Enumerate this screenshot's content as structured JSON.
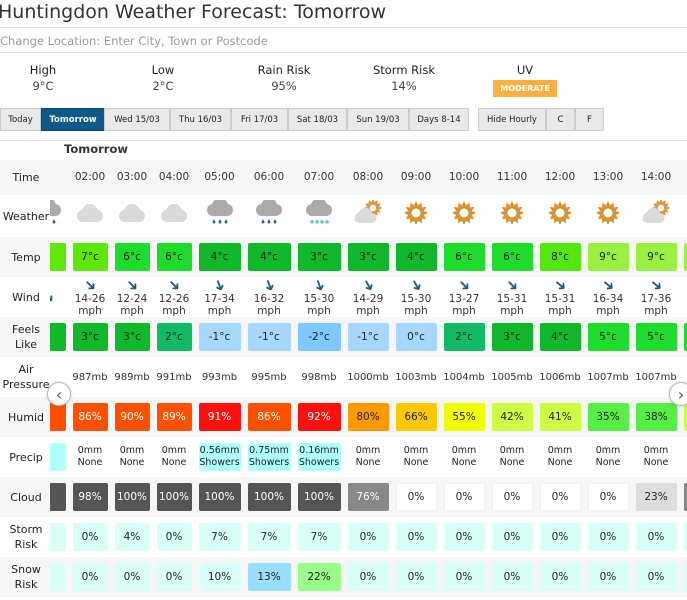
{
  "title": "Huntingdon Weather Forecast: Tomorrow",
  "location": {
    "placeholder": "Change Location: Enter City, Town or Postcode"
  },
  "summary": [
    {
      "label": "High",
      "value": "9°C"
    },
    {
      "label": "Low",
      "value": "2°C"
    },
    {
      "label": "Rain Risk",
      "value": "95%"
    },
    {
      "label": "Storm Risk",
      "value": "14%"
    },
    {
      "label": "UV",
      "value": "MODERATE",
      "color": "#f9b040"
    }
  ],
  "tabs": [
    {
      "label": "Today"
    },
    {
      "label": "Tomorrow",
      "active": true
    },
    {
      "label": "Wed 15/03"
    },
    {
      "label": "Thu 16/03"
    },
    {
      "label": "Fri 17/03"
    },
    {
      "label": "Sat 18/03"
    },
    {
      "label": "Sun 19/03"
    },
    {
      "label": "Days 8-14"
    },
    {
      "label": "Hide Hourly"
    },
    {
      "label": "C"
    },
    {
      "label": "F"
    }
  ],
  "day_heading": "Tomorrow",
  "row_labels": {
    "time": "Time",
    "weather": "Weather",
    "temp": "Temp",
    "wind": "Wind",
    "feels": "Feels Like",
    "pressure": "Air Pressure",
    "humid": "Humid",
    "precip": "Precip",
    "cloud": "Cloud",
    "storm": "Storm Risk",
    "snow": "Snow Risk"
  },
  "accent": "#0d5a8a",
  "hours": [
    {
      "time": "",
      "icon": "rain-cloud-icon",
      "temp": "",
      "temp_color": "#5de80a",
      "wind_speed": "",
      "wind_unit": "",
      "wind_dir": 135,
      "feels": "",
      "feels_color": "#10b82a",
      "pressure": "",
      "humid": "",
      "humid_color": "#ff5000",
      "precip_amt": "",
      "precip_type": "",
      "precip_color": "#b0ffff",
      "cloud": "",
      "cloud_color": "#555555",
      "storm": "",
      "snow": ""
    },
    {
      "time": "02:00",
      "icon": "cloud-icon",
      "temp": "7°c",
      "temp_color": "#5de80a",
      "wind_speed": "14-26",
      "wind_unit": "mph",
      "wind_dir": 135,
      "feels": "3°c",
      "feels_color": "#10b82a",
      "pressure": "987mb",
      "humid": "86%",
      "humid_color": "#ff5000",
      "precip_amt": "0mm",
      "precip_type": "None",
      "cloud": "98%",
      "cloud_color": "#555555",
      "storm": "0%",
      "snow": "0%"
    },
    {
      "time": "03:00",
      "icon": "cloud-icon",
      "temp": "6°c",
      "temp_color": "#1ddc2c",
      "wind_speed": "12-24",
      "wind_unit": "mph",
      "wind_dir": 135,
      "feels": "3°c",
      "feels_color": "#10b82a",
      "pressure": "989mb",
      "humid": "90%",
      "humid_color": "#ff5000",
      "precip_amt": "0mm",
      "precip_type": "None",
      "cloud": "100%",
      "cloud_color": "#555555",
      "storm": "4%",
      "snow": "0%"
    },
    {
      "time": "04:00",
      "icon": "cloud-icon",
      "temp": "6°c",
      "temp_color": "#1ddc2c",
      "wind_speed": "12-26",
      "wind_unit": "mph",
      "wind_dir": 135,
      "feels": "2°c",
      "feels_color": "#11bb66",
      "pressure": "991mb",
      "humid": "89%",
      "humid_color": "#ff5000",
      "precip_amt": "0mm",
      "precip_type": "None",
      "cloud": "100%",
      "cloud_color": "#555555",
      "storm": "0%",
      "snow": "0%"
    },
    {
      "time": "05:00",
      "icon": "rain-cloud-icon",
      "temp": "4°c",
      "temp_color": "#10b82a",
      "wind_speed": "17-34",
      "wind_unit": "mph",
      "wind_dir": 160,
      "feels": "-1°c",
      "feels_color": "#a6d8ff",
      "pressure": "993mb",
      "humid": "91%",
      "humid_color": "#ff1010",
      "precip_amt": "0.56mm",
      "precip_type": "Showers",
      "precip_color": "#b0ffff",
      "cloud": "100%",
      "cloud_color": "#555555",
      "storm": "7%",
      "snow": "10%"
    },
    {
      "time": "06:00",
      "icon": "rain-cloud-icon",
      "temp": "4°c",
      "temp_color": "#10b82a",
      "wind_speed": "16-32",
      "wind_unit": "mph",
      "wind_dir": 160,
      "feels": "-1°c",
      "feels_color": "#a6d8ff",
      "pressure": "995mb",
      "humid": "86%",
      "humid_color": "#ff5000",
      "precip_amt": "0.75mm",
      "precip_type": "Showers",
      "precip_color": "#b0ffff",
      "cloud": "100%",
      "cloud_color": "#555555",
      "storm": "7%",
      "snow": "13%",
      "snow_color": "#99ddff"
    },
    {
      "time": "07:00",
      "icon": "sleet-cloud-icon",
      "temp": "3°c",
      "temp_color": "#10b82a",
      "wind_speed": "15-30",
      "wind_unit": "mph",
      "wind_dir": 160,
      "feels": "-2°c",
      "feels_color": "#7fc8ff",
      "pressure": "998mb",
      "humid": "92%",
      "humid_color": "#ff1010",
      "precip_amt": "0.16mm",
      "precip_type": "Showers",
      "precip_color": "#b0ffff",
      "cloud": "100%",
      "cloud_color": "#555555",
      "storm": "7%",
      "snow": "22%",
      "snow_color": "#99ff88"
    },
    {
      "time": "08:00",
      "icon": "sun-cloud-icon",
      "temp": "3°c",
      "temp_color": "#10b82a",
      "wind_speed": "14-29",
      "wind_unit": "mph",
      "wind_dir": 150,
      "feels": "-1°c",
      "feels_color": "#a6d8ff",
      "pressure": "1000mb",
      "humid": "80%",
      "humid_color": "#ff9900",
      "precip_amt": "0mm",
      "precip_type": "None",
      "cloud": "76%",
      "cloud_color": "#888888",
      "storm": "0%",
      "snow": "0%"
    },
    {
      "time": "09:00",
      "icon": "sun-icon",
      "temp": "4°c",
      "temp_color": "#10b82a",
      "wind_speed": "15-30",
      "wind_unit": "mph",
      "wind_dir": 150,
      "feels": "0°c",
      "feels_color": "#a6d8ff",
      "pressure": "1003mb",
      "humid": "66%",
      "humid_color": "#ffc800",
      "precip_amt": "0mm",
      "precip_type": "None",
      "cloud": "0%",
      "cloud_color": "#ffffff",
      "storm": "0%",
      "snow": "0%"
    },
    {
      "time": "10:00",
      "icon": "sun-icon",
      "temp": "6°c",
      "temp_color": "#1ddc2c",
      "wind_speed": "13-27",
      "wind_unit": "mph",
      "wind_dir": 135,
      "feels": "2°c",
      "feels_color": "#11bb66",
      "pressure": "1004mb",
      "humid": "55%",
      "humid_color": "#f0ff00",
      "precip_amt": "0mm",
      "precip_type": "None",
      "cloud": "0%",
      "cloud_color": "#ffffff",
      "storm": "0%",
      "snow": "0%"
    },
    {
      "time": "11:00",
      "icon": "sun-icon",
      "temp": "6°c",
      "temp_color": "#1ddc2c",
      "wind_speed": "15-31",
      "wind_unit": "mph",
      "wind_dir": 135,
      "feels": "3°c",
      "feels_color": "#10b82a",
      "pressure": "1005mb",
      "humid": "42%",
      "humid_color": "#ccff44",
      "precip_amt": "0mm",
      "precip_type": "None",
      "cloud": "0%",
      "cloud_color": "#ffffff",
      "storm": "0%",
      "snow": "0%"
    },
    {
      "time": "12:00",
      "icon": "sun-icon",
      "temp": "8°c",
      "temp_color": "#55e810",
      "wind_speed": "15-31",
      "wind_unit": "mph",
      "wind_dir": 130,
      "feels": "4°c",
      "feels_color": "#10b82a",
      "pressure": "1006mb",
      "humid": "41%",
      "humid_color": "#ccff44",
      "precip_amt": "0mm",
      "precip_type": "None",
      "cloud": "0%",
      "cloud_color": "#ffffff",
      "storm": "0%",
      "snow": "0%"
    },
    {
      "time": "13:00",
      "icon": "sun-icon",
      "temp": "9°c",
      "temp_color": "#99f040",
      "wind_speed": "16-34",
      "wind_unit": "mph",
      "wind_dir": 130,
      "feels": "5°c",
      "feels_color": "#1ddc2c",
      "pressure": "1007mb",
      "humid": "35%",
      "humid_color": "#55ee44",
      "precip_amt": "0mm",
      "precip_type": "None",
      "cloud": "0%",
      "cloud_color": "#ffffff",
      "storm": "0%",
      "snow": "0%"
    },
    {
      "time": "14:00",
      "icon": "sun-cloud-icon",
      "temp": "9°c",
      "temp_color": "#99f040",
      "wind_speed": "17-36",
      "wind_unit": "mph",
      "wind_dir": 130,
      "feels": "5°c",
      "feels_color": "#1ddc2c",
      "pressure": "1007mb",
      "humid": "38%",
      "humid_color": "#55ee44",
      "precip_amt": "0mm",
      "precip_type": "None",
      "cloud": "23%",
      "cloud_color": "#dddddd",
      "storm": "0%",
      "snow": "0%"
    },
    {
      "time": "",
      "icon": "",
      "temp": "",
      "temp_color": "#99f040",
      "wind_speed": "",
      "wind_unit": "",
      "feels": "",
      "feels_color": "#1ddc2c",
      "pressure": "",
      "humid": "",
      "humid_color": "#ccff44",
      "precip_amt": "",
      "precip_type": "",
      "cloud": "",
      "cloud_color": "#888888",
      "storm": "",
      "snow": ""
    }
  ],
  "nav": {
    "prev": "‹",
    "next": "›"
  }
}
